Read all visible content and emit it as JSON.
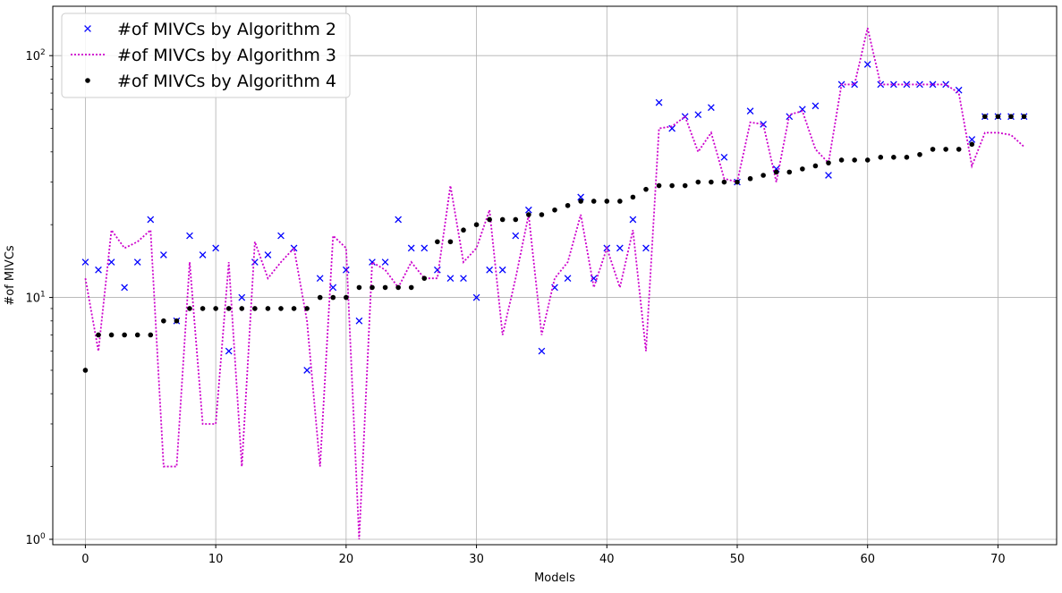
{
  "chart_data": {
    "type": "line",
    "xlabel": "Models",
    "ylabel": "#of MIVCs",
    "xlim": [
      -2.5,
      74.5
    ],
    "ylim": [
      0.95,
      160
    ],
    "yscale": "log",
    "grid": true,
    "legend_position": "top-left",
    "x_ticks": [
      0,
      10,
      20,
      30,
      40,
      50,
      60,
      70
    ],
    "y_ticks": [
      1,
      10,
      100
    ],
    "y_tick_labels": [
      "10",
      "10",
      "10"
    ],
    "y_tick_exponents": [
      "0",
      "1",
      "2"
    ],
    "x": [
      0,
      1,
      2,
      3,
      4,
      5,
      6,
      7,
      8,
      9,
      10,
      11,
      12,
      13,
      14,
      15,
      16,
      17,
      18,
      19,
      20,
      21,
      22,
      23,
      24,
      25,
      26,
      27,
      28,
      29,
      30,
      31,
      32,
      33,
      34,
      35,
      36,
      37,
      38,
      39,
      40,
      41,
      42,
      43,
      44,
      45,
      46,
      47,
      48,
      49,
      50,
      51,
      52,
      53,
      54,
      55,
      56,
      57,
      58,
      59,
      60,
      61,
      62,
      63,
      64,
      65,
      66,
      67,
      68,
      69,
      70,
      71,
      72
    ],
    "series": [
      {
        "name": "#of MIVCs by Algorithm 2",
        "style": "x-marker",
        "color": "#0000ff",
        "values": [
          14,
          13,
          14,
          11,
          14,
          21,
          15,
          8,
          18,
          15,
          16,
          6,
          10,
          14,
          15,
          18,
          16,
          5,
          12,
          11,
          13,
          8,
          14,
          14,
          21,
          16,
          16,
          13,
          12,
          12,
          10,
          13,
          13,
          18,
          23,
          6,
          11,
          12,
          26,
          12,
          16,
          16,
          21,
          16,
          64,
          50,
          56,
          57,
          61,
          38,
          30,
          59,
          52,
          34,
          56,
          60,
          62,
          32,
          76,
          76,
          92,
          76,
          76,
          76,
          76,
          76,
          76,
          72,
          45,
          56,
          56,
          56,
          56
        ]
      },
      {
        "name": "#of MIVCs by Algorithm 3",
        "style": "dotted-line",
        "color": "#cc00cc",
        "values": [
          12,
          6,
          19,
          16,
          17,
          19,
          2,
          2,
          14,
          3,
          3,
          14,
          2,
          17,
          12,
          14,
          16,
          8,
          2,
          18,
          16,
          1,
          14,
          13,
          11,
          14,
          12,
          12,
          29,
          14,
          16,
          23,
          7,
          12,
          22,
          7,
          12,
          14,
          22,
          11,
          16,
          11,
          19,
          6,
          50,
          51,
          56,
          40,
          48,
          31,
          30,
          53,
          52,
          30,
          57,
          59,
          41,
          36,
          76,
          76,
          130,
          76,
          76,
          76,
          76,
          76,
          76,
          70,
          35,
          48,
          48,
          47,
          42
        ]
      },
      {
        "name": "#of MIVCs by Algorithm 4",
        "style": "dot-marker",
        "color": "#000000",
        "values": [
          5,
          7,
          7,
          7,
          7,
          7,
          8,
          8,
          9,
          9,
          9,
          9,
          9,
          9,
          9,
          9,
          9,
          9,
          10,
          10,
          10,
          11,
          11,
          11,
          11,
          11,
          12,
          17,
          17,
          19,
          20,
          21,
          21,
          21,
          22,
          22,
          23,
          24,
          25,
          25,
          25,
          25,
          26,
          28,
          29,
          29,
          29,
          30,
          30,
          30,
          30,
          31,
          32,
          33,
          33,
          34,
          35,
          36,
          37,
          37,
          37,
          38,
          38,
          38,
          39,
          41,
          41,
          41,
          43,
          56,
          56,
          56,
          56
        ]
      }
    ]
  }
}
